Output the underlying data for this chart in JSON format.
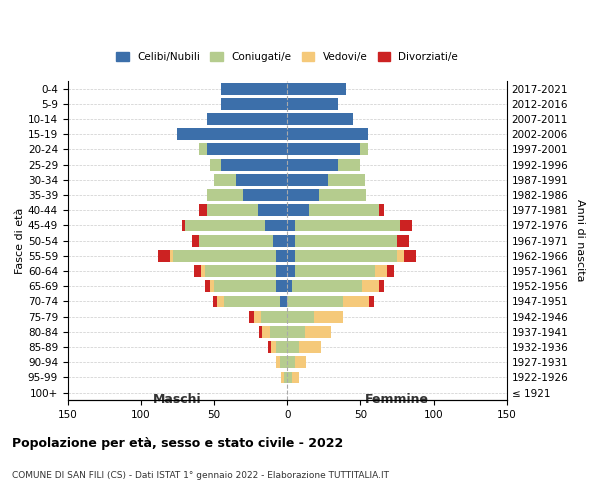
{
  "age_groups": [
    "0-4",
    "5-9",
    "10-14",
    "15-19",
    "20-24",
    "25-29",
    "30-34",
    "35-39",
    "40-44",
    "45-49",
    "50-54",
    "55-59",
    "60-64",
    "65-69",
    "70-74",
    "75-79",
    "80-84",
    "85-89",
    "90-94",
    "95-99",
    "100+"
  ],
  "birth_years": [
    "2017-2021",
    "2012-2016",
    "2007-2011",
    "2002-2006",
    "1997-2001",
    "1992-1996",
    "1987-1991",
    "1982-1986",
    "1977-1981",
    "1972-1976",
    "1967-1971",
    "1962-1966",
    "1957-1961",
    "1952-1956",
    "1947-1951",
    "1942-1946",
    "1937-1941",
    "1932-1936",
    "1927-1931",
    "1922-1926",
    "≤ 1921"
  ],
  "male": {
    "celibi": [
      45,
      45,
      55,
      75,
      55,
      45,
      35,
      30,
      20,
      15,
      10,
      8,
      8,
      8,
      5,
      0,
      0,
      0,
      0,
      0,
      0
    ],
    "coniugati": [
      0,
      0,
      0,
      0,
      5,
      8,
      15,
      25,
      35,
      55,
      50,
      70,
      48,
      42,
      38,
      18,
      12,
      8,
      5,
      2,
      0
    ],
    "vedovi": [
      0,
      0,
      0,
      0,
      0,
      0,
      0,
      0,
      0,
      0,
      0,
      2,
      3,
      3,
      5,
      5,
      5,
      3,
      3,
      2,
      0
    ],
    "divorziati": [
      0,
      0,
      0,
      0,
      0,
      0,
      0,
      0,
      5,
      2,
      5,
      8,
      5,
      3,
      3,
      3,
      2,
      2,
      0,
      0,
      0
    ]
  },
  "female": {
    "nubili": [
      40,
      35,
      45,
      55,
      50,
      35,
      28,
      22,
      15,
      5,
      5,
      5,
      5,
      3,
      0,
      0,
      0,
      0,
      0,
      0,
      0
    ],
    "coniugate": [
      0,
      0,
      0,
      0,
      5,
      15,
      25,
      32,
      48,
      72,
      70,
      70,
      55,
      48,
      38,
      18,
      12,
      8,
      5,
      3,
      0
    ],
    "vedove": [
      0,
      0,
      0,
      0,
      0,
      0,
      0,
      0,
      0,
      0,
      0,
      5,
      8,
      12,
      18,
      20,
      18,
      15,
      8,
      5,
      0
    ],
    "divorziate": [
      0,
      0,
      0,
      0,
      0,
      0,
      0,
      0,
      3,
      8,
      8,
      8,
      5,
      3,
      3,
      0,
      0,
      0,
      0,
      0,
      0
    ]
  },
  "colors": {
    "celibi": "#3c6faa",
    "coniugati": "#b5cc8e",
    "vedovi": "#f5c97a",
    "divorziati": "#cc2222"
  },
  "xlim": 150,
  "title": "Popolazione per età, sesso e stato civile - 2022",
  "subtitle": "COMUNE DI SAN FILI (CS) - Dati ISTAT 1° gennaio 2022 - Elaborazione TUTTITALIA.IT",
  "ylabel": "Fasce di età",
  "ylabel_right": "Anni di nascita",
  "legend_labels": [
    "Celibi/Nubili",
    "Coniugati/e",
    "Vedovi/e",
    "Divorziati/e"
  ]
}
